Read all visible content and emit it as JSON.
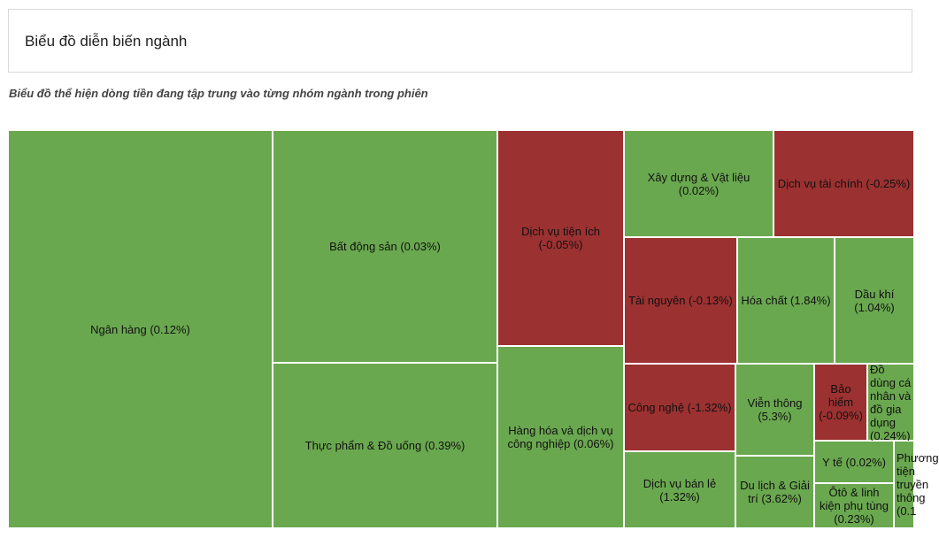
{
  "header": {
    "title": "Biểu đồ diễn biến ngành",
    "subtitle": "Biểu đồ thể hiện dòng tiền đang tập trung vào từng nhóm ngành trong phiên"
  },
  "colors": {
    "positive": "#6aa84f",
    "negative": "#9c3131"
  },
  "chart_data": {
    "type": "treemap",
    "items": [
      {
        "name": "Ngân hàng",
        "change_pct": 0.12,
        "label": "Ngân hàng (0.12%)"
      },
      {
        "name": "Bất động sản",
        "change_pct": 0.03,
        "label": "Bất động sản (0.03%)"
      },
      {
        "name": "Thực phẩm & Đồ uống",
        "change_pct": 0.39,
        "label": "Thực phẩm & Đồ uống (0.39%)"
      },
      {
        "name": "Dịch vụ tiện ích",
        "change_pct": -0.05,
        "label": "Dịch vụ tiện ích (-0.05%)"
      },
      {
        "name": "Hàng hóa và dịch vụ công nghiệp",
        "change_pct": 0.06,
        "label": "Hàng hóa và dịch vụ công nghiệp (0.06%)"
      },
      {
        "name": "Xây dựng & Vật liệu",
        "change_pct": 0.02,
        "label": "Xây dựng & Vật liệu (0.02%)"
      },
      {
        "name": "Dịch vụ tài chính",
        "change_pct": -0.25,
        "label": "Dịch vụ tài chính (-0.25%)"
      },
      {
        "name": "Tài nguyên",
        "change_pct": -0.13,
        "label": "Tài nguyên (-0.13%)"
      },
      {
        "name": "Hóa chất",
        "change_pct": 1.84,
        "label": "Hóa chất (1.84%)"
      },
      {
        "name": "Dầu khí",
        "change_pct": 1.04,
        "label": "Dầu khí (1.04%)"
      },
      {
        "name": "Công nghệ",
        "change_pct": -1.32,
        "label": "Công nghệ (-1.32%)"
      },
      {
        "name": "Viễn thông",
        "change_pct": 5.3,
        "label": "Viễn thông (5.3%)"
      },
      {
        "name": "Bảo hiểm",
        "change_pct": -0.09,
        "label": "Bảo hiểm (-0.09%)"
      },
      {
        "name": "Đồ dùng cá nhân và đồ gia dụng",
        "change_pct": 0.24,
        "label": "Đồ dùng cá nhân và đồ gia dụng (0.24%)"
      },
      {
        "name": "Dịch vụ bán lẻ",
        "change_pct": 1.32,
        "label": "Dịch vụ bán lẻ (1.32%)"
      },
      {
        "name": "Du lịch & Giải trí",
        "change_pct": 3.62,
        "label": "Du lịch & Giải trí (3.62%)"
      },
      {
        "name": "Y tế",
        "change_pct": 0.02,
        "label": "Y tế (0.02%)"
      },
      {
        "name": "Ôtô & linh kiện phụ tùng",
        "change_pct": 0.23,
        "label": "Ôtô & linh kiện phụ tùng (0.23%)"
      },
      {
        "name": "Phương tiện truyền thông",
        "change_pct": 0.1,
        "label": "Phương tiện truyền thông (0.1"
      }
    ]
  }
}
